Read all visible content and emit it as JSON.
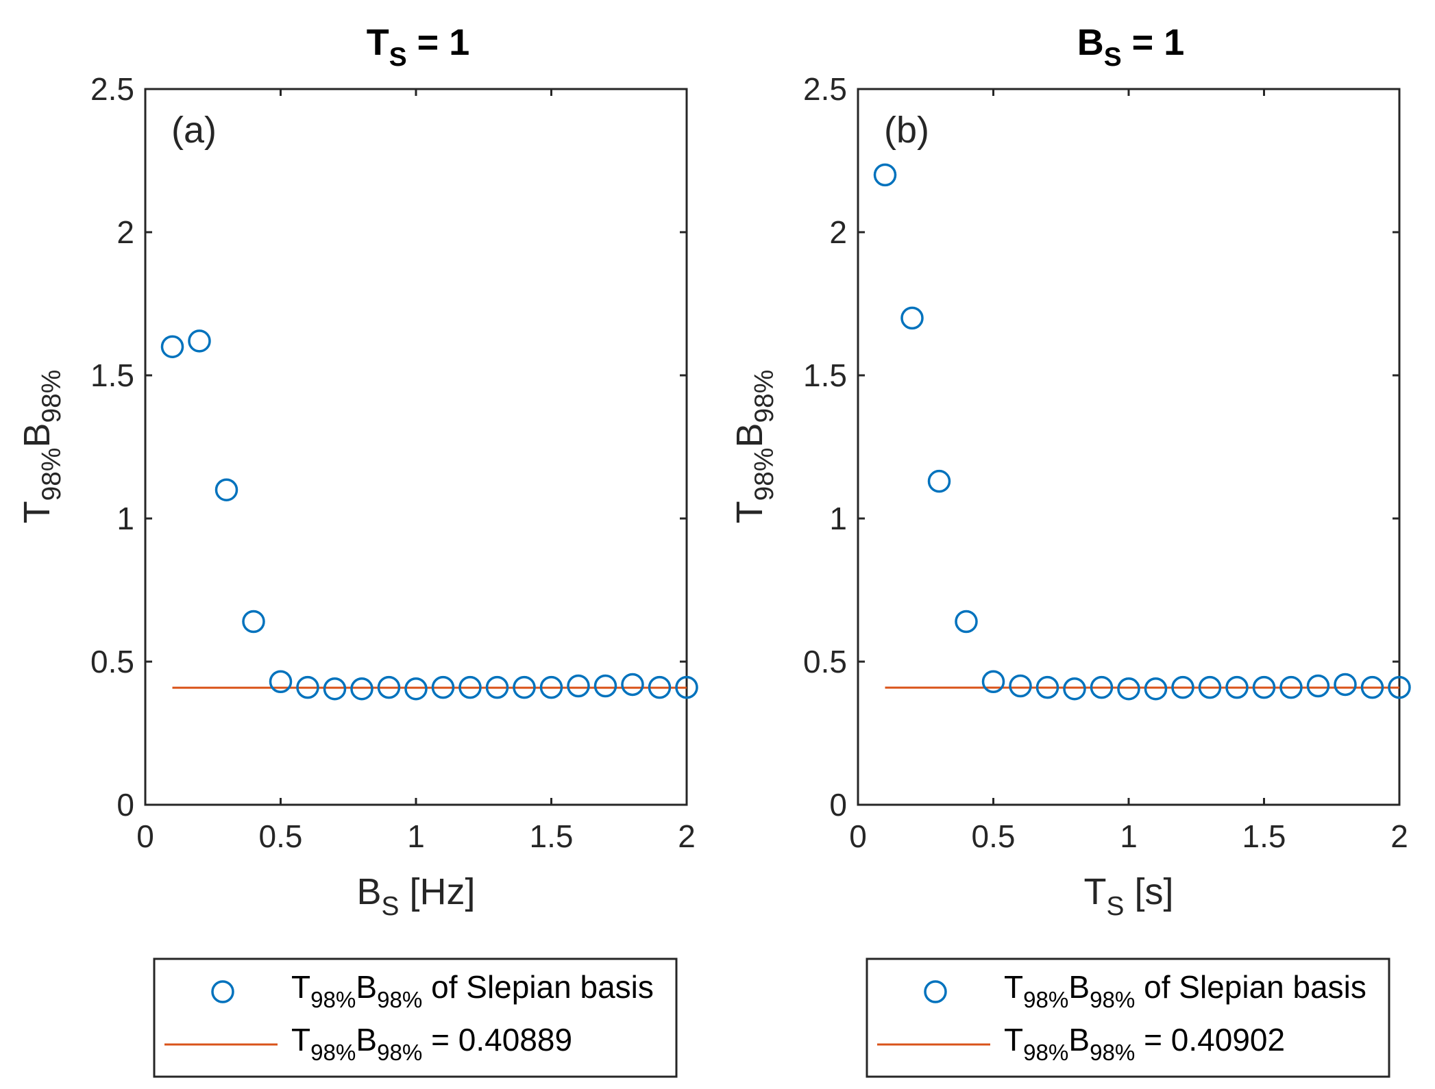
{
  "chart_data": [
    {
      "type": "scatter",
      "panel_label": "(a)",
      "title": {
        "main": "T",
        "sub": "S",
        "rest": " = 1"
      },
      "xlabel": {
        "main": "B",
        "sub": "S",
        "rest": " [Hz]"
      },
      "ylabel": {
        "p1": "T",
        "s1": "98%",
        "p2": "B",
        "s2": "98%"
      },
      "xlim": [
        0,
        2
      ],
      "ylim": [
        0,
        2.5
      ],
      "xticks": [
        0,
        0.5,
        1,
        1.5,
        2
      ],
      "xtick_labels": [
        "0",
        "0.5",
        "1",
        "1.5",
        "2"
      ],
      "yticks": [
        0,
        0.5,
        1,
        1.5,
        2,
        2.5
      ],
      "ytick_labels": [
        "0",
        "0.5",
        "1",
        "1.5",
        "2",
        "2.5"
      ],
      "series": [
        {
          "name": "T98%B98% of Slepian basis",
          "kind": "markers",
          "color": "#0072BD",
          "x": [
            0.1,
            0.2,
            0.3,
            0.4,
            0.5,
            0.6,
            0.7,
            0.8,
            0.9,
            1.0,
            1.1,
            1.2,
            1.3,
            1.4,
            1.5,
            1.6,
            1.7,
            1.8,
            1.9,
            2.0
          ],
          "y": [
            1.6,
            1.62,
            1.1,
            0.64,
            0.43,
            0.41,
            0.405,
            0.405,
            0.41,
            0.405,
            0.41,
            0.41,
            0.41,
            0.41,
            0.41,
            0.415,
            0.415,
            0.42,
            0.41,
            0.41
          ]
        },
        {
          "name": "T98%B98% = 0.40889",
          "kind": "line",
          "color": "#D95319",
          "x": [
            0.1,
            2.0
          ],
          "y": [
            0.40889,
            0.40889
          ]
        }
      ],
      "legend": {
        "entry1": {
          "p1": "T",
          "s1": "98%",
          "p2": "B",
          "s2": "98%",
          "rest": " of Slepian basis"
        },
        "entry2": {
          "p1": "T",
          "s1": "98%",
          "p2": "B",
          "s2": "98%",
          "rest": " = 0.40889"
        },
        "placement": "below"
      }
    },
    {
      "type": "scatter",
      "panel_label": "(b)",
      "title": {
        "main": "B",
        "sub": "S",
        "rest": " = 1"
      },
      "xlabel": {
        "main": "T",
        "sub": "S",
        "rest": " [s]"
      },
      "ylabel": {
        "p1": "T",
        "s1": "98%",
        "p2": "B",
        "s2": "98%"
      },
      "xlim": [
        0,
        2
      ],
      "ylim": [
        0,
        2.5
      ],
      "xticks": [
        0,
        0.5,
        1,
        1.5,
        2
      ],
      "xtick_labels": [
        "0",
        "0.5",
        "1",
        "1.5",
        "2"
      ],
      "yticks": [
        0,
        0.5,
        1,
        1.5,
        2,
        2.5
      ],
      "ytick_labels": [
        "0",
        "0.5",
        "1",
        "1.5",
        "2",
        "2.5"
      ],
      "series": [
        {
          "name": "T98%B98% of Slepian basis",
          "kind": "markers",
          "color": "#0072BD",
          "x": [
            0.1,
            0.2,
            0.3,
            0.4,
            0.5,
            0.6,
            0.7,
            0.8,
            0.9,
            1.0,
            1.1,
            1.2,
            1.3,
            1.4,
            1.5,
            1.6,
            1.7,
            1.8,
            1.9,
            2.0
          ],
          "y": [
            2.2,
            1.7,
            1.13,
            0.64,
            0.43,
            0.415,
            0.41,
            0.405,
            0.41,
            0.405,
            0.405,
            0.41,
            0.41,
            0.41,
            0.41,
            0.41,
            0.415,
            0.42,
            0.41,
            0.41
          ]
        },
        {
          "name": "T98%B98% = 0.40902",
          "kind": "line",
          "color": "#D95319",
          "x": [
            0.1,
            2.0
          ],
          "y": [
            0.40902,
            0.40902
          ]
        }
      ],
      "legend": {
        "entry1": {
          "p1": "T",
          "s1": "98%",
          "p2": "B",
          "s2": "98%",
          "rest": " of Slepian basis"
        },
        "entry2": {
          "p1": "T",
          "s1": "98%",
          "p2": "B",
          "s2": "98%",
          "rest": " = 0.40902"
        },
        "placement": "below"
      }
    }
  ]
}
